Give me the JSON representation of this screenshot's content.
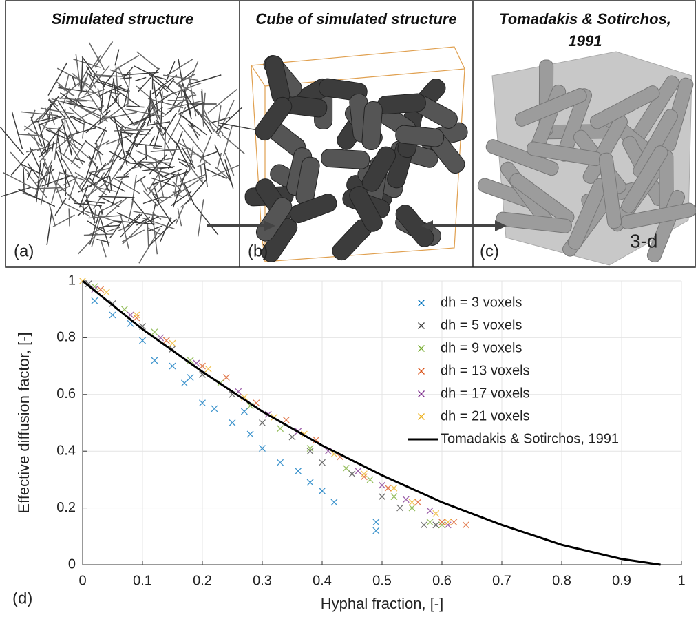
{
  "panels": [
    {
      "title": "Simulated structure",
      "label": "(a)"
    },
    {
      "title": "Cube of simulated structure",
      "label": "(b)"
    },
    {
      "title": "Tomadakis & Sotirchos, 1991",
      "label": "(c)",
      "annotation": "3-d"
    }
  ],
  "chart_data": {
    "type": "scatter",
    "panel_label": "(d)",
    "xlabel": "Hyphal fraction, [-]",
    "ylabel": "Effective diffusion factor, [-]",
    "xlim": [
      0,
      1
    ],
    "ylim": [
      0,
      1
    ],
    "xticks": [
      0,
      0.1,
      0.2,
      0.3,
      0.4,
      0.5,
      0.6,
      0.7,
      0.8,
      0.9,
      1
    ],
    "yticks": [
      0,
      0.2,
      0.4,
      0.6,
      0.8,
      1
    ],
    "grid": true,
    "legend": "upper right",
    "series": [
      {
        "name": "dh = 3 voxels",
        "color": "#0072BD",
        "mode": "markers",
        "x": [
          0.02,
          0.05,
          0.08,
          0.1,
          0.12,
          0.15,
          0.17,
          0.2,
          0.22,
          0.25,
          0.28,
          0.3,
          0.33,
          0.36,
          0.38,
          0.4,
          0.42,
          0.49,
          0.49,
          0.27,
          0.18
        ],
        "values": [
          0.93,
          0.88,
          0.85,
          0.79,
          0.72,
          0.7,
          0.64,
          0.57,
          0.55,
          0.5,
          0.46,
          0.41,
          0.36,
          0.33,
          0.29,
          0.26,
          0.22,
          0.12,
          0.15,
          0.54,
          0.66
        ]
      },
      {
        "name": "dh = 5 voxels",
        "color": "#404040",
        "mode": "markers",
        "x": [
          0.01,
          0.05,
          0.1,
          0.15,
          0.2,
          0.25,
          0.3,
          0.35,
          0.38,
          0.4,
          0.45,
          0.5,
          0.53,
          0.57,
          0.59
        ],
        "values": [
          0.99,
          0.92,
          0.84,
          0.76,
          0.67,
          0.6,
          0.5,
          0.45,
          0.4,
          0.36,
          0.32,
          0.24,
          0.2,
          0.14,
          0.14
        ]
      },
      {
        "name": "dh = 9 voxels",
        "color": "#77AC30",
        "mode": "markers",
        "x": [
          0.02,
          0.07,
          0.12,
          0.18,
          0.23,
          0.28,
          0.33,
          0.38,
          0.44,
          0.48,
          0.52,
          0.55,
          0.58,
          0.6
        ],
        "values": [
          0.98,
          0.9,
          0.82,
          0.72,
          0.64,
          0.56,
          0.48,
          0.41,
          0.34,
          0.3,
          0.24,
          0.2,
          0.15,
          0.14
        ]
      },
      {
        "name": "dh = 13 voxels",
        "color": "#D95319",
        "mode": "markers",
        "x": [
          0.03,
          0.09,
          0.14,
          0.2,
          0.24,
          0.29,
          0.34,
          0.39,
          0.43,
          0.47,
          0.51,
          0.56,
          0.6,
          0.64,
          0.62
        ],
        "values": [
          0.97,
          0.87,
          0.79,
          0.7,
          0.66,
          0.57,
          0.51,
          0.44,
          0.38,
          0.31,
          0.27,
          0.22,
          0.15,
          0.14,
          0.15
        ]
      },
      {
        "name": "dh = 17 voxels",
        "color": "#7E2F8E",
        "mode": "markers",
        "x": [
          0.02,
          0.08,
          0.13,
          0.19,
          0.26,
          0.31,
          0.36,
          0.41,
          0.46,
          0.5,
          0.54,
          0.58,
          0.61
        ],
        "values": [
          0.97,
          0.88,
          0.8,
          0.71,
          0.61,
          0.53,
          0.47,
          0.4,
          0.33,
          0.28,
          0.23,
          0.19,
          0.14
        ]
      },
      {
        "name": "dh = 21 voxels",
        "color": "#EDB120",
        "mode": "markers",
        "x": [
          0,
          0.04,
          0.09,
          0.15,
          0.21,
          0.27,
          0.32,
          0.37,
          0.42,
          0.47,
          0.52,
          0.55,
          0.59,
          0.61
        ],
        "values": [
          1,
          0.96,
          0.88,
          0.78,
          0.69,
          0.59,
          0.52,
          0.46,
          0.39,
          0.32,
          0.27,
          0.22,
          0.18,
          0.15
        ]
      },
      {
        "name": "Tomadakis & Sotirchos, 1991",
        "color": "#000000",
        "mode": "lines",
        "x": [
          0,
          0.1,
          0.2,
          0.3,
          0.4,
          0.5,
          0.6,
          0.7,
          0.8,
          0.9,
          0.965
        ],
        "values": [
          1,
          0.83,
          0.68,
          0.54,
          0.42,
          0.315,
          0.22,
          0.14,
          0.07,
          0.02,
          0
        ]
      }
    ]
  }
}
